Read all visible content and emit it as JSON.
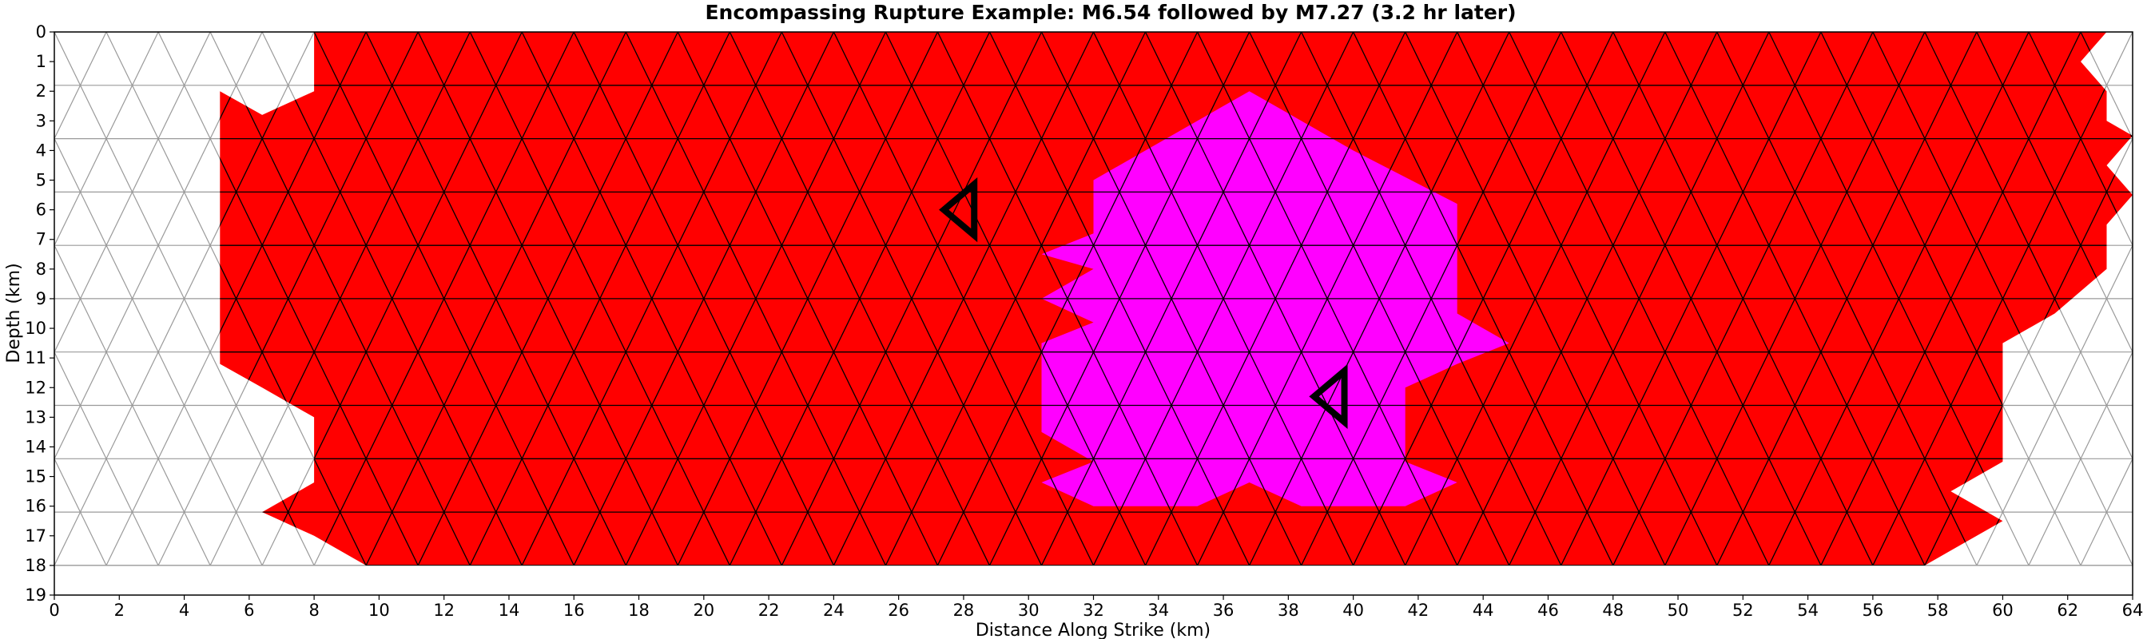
{
  "chart_data": {
    "type": "heatmap",
    "title": "Encompassing Rupture Example: M6.54 followed by M7.27 (3.2 hr later)",
    "xlabel": "Distance Along Strike (km)",
    "ylabel": "Depth (km)",
    "xlim": [
      0,
      64
    ],
    "ylim": [
      19,
      0
    ],
    "x_ticks": [
      0,
      2,
      4,
      6,
      8,
      10,
      12,
      14,
      16,
      18,
      20,
      22,
      24,
      26,
      28,
      30,
      32,
      34,
      36,
      38,
      40,
      42,
      44,
      46,
      48,
      50,
      52,
      54,
      56,
      58,
      60,
      62,
      64
    ],
    "y_ticks": [
      0,
      1,
      2,
      3,
      4,
      5,
      6,
      7,
      8,
      9,
      10,
      11,
      12,
      13,
      14,
      15,
      16,
      17,
      18,
      19
    ],
    "mesh": {
      "triangle_row_height_km": 1.8,
      "triangle_side_km": 1.6,
      "depth_range": [
        0,
        18
      ],
      "strike_range": [
        0,
        64
      ]
    },
    "ruptures": [
      {
        "event": "M6.54",
        "color": "#ff0000",
        "outline_km": [
          [
            8.0,
            0.0
          ],
          [
            63.2,
            0.0
          ],
          [
            62.4,
            1.0
          ],
          [
            63.2,
            2.0
          ],
          [
            63.2,
            3.0
          ],
          [
            64.0,
            3.5
          ],
          [
            63.2,
            4.5
          ],
          [
            64.0,
            5.5
          ],
          [
            63.2,
            6.5
          ],
          [
            63.2,
            8.0
          ],
          [
            61.6,
            9.5
          ],
          [
            60.0,
            10.5
          ],
          [
            60.0,
            14.5
          ],
          [
            58.4,
            15.5
          ],
          [
            60.0,
            16.5
          ],
          [
            58.4,
            17.5
          ],
          [
            57.6,
            18.0
          ],
          [
            9.6,
            18.0
          ],
          [
            8.0,
            17.0
          ],
          [
            6.4,
            16.2
          ],
          [
            8.0,
            15.2
          ],
          [
            8.0,
            13.0
          ],
          [
            6.4,
            12.0
          ],
          [
            5.1,
            11.2
          ],
          [
            5.1,
            2.0
          ],
          [
            6.4,
            2.8
          ],
          [
            8.0,
            2.0
          ]
        ]
      },
      {
        "event": "M7.27",
        "color": "#ff00ff",
        "outline_km": [
          [
            36.8,
            2.0
          ],
          [
            40.0,
            4.0
          ],
          [
            43.2,
            5.8
          ],
          [
            43.2,
            9.5
          ],
          [
            44.8,
            10.5
          ],
          [
            43.2,
            11.2
          ],
          [
            41.6,
            12.0
          ],
          [
            41.6,
            14.5
          ],
          [
            43.2,
            15.2
          ],
          [
            41.6,
            16.0
          ],
          [
            38.4,
            16.0
          ],
          [
            36.8,
            15.2
          ],
          [
            35.2,
            16.0
          ],
          [
            32.0,
            16.0
          ],
          [
            30.4,
            15.2
          ],
          [
            32.0,
            14.5
          ],
          [
            30.4,
            13.5
          ],
          [
            30.4,
            10.5
          ],
          [
            32.0,
            9.8
          ],
          [
            30.4,
            9.0
          ],
          [
            32.0,
            8.0
          ],
          [
            30.4,
            7.5
          ],
          [
            32.0,
            6.8
          ],
          [
            32.0,
            5.0
          ],
          [
            35.2,
            3.0
          ]
        ]
      }
    ],
    "hypocenter_markers": [
      {
        "event": "M6.54",
        "x": 28.0,
        "y": 6.0,
        "shape": "left-pointing-triangle"
      },
      {
        "event": "M7.27",
        "x": 39.4,
        "y": 12.3,
        "shape": "left-pointing-triangle"
      }
    ],
    "grid": true,
    "colors": {
      "mesh_unruptured": "#9a9a9a",
      "mesh_ruptured": "#000000",
      "background": "#ffffff"
    }
  }
}
